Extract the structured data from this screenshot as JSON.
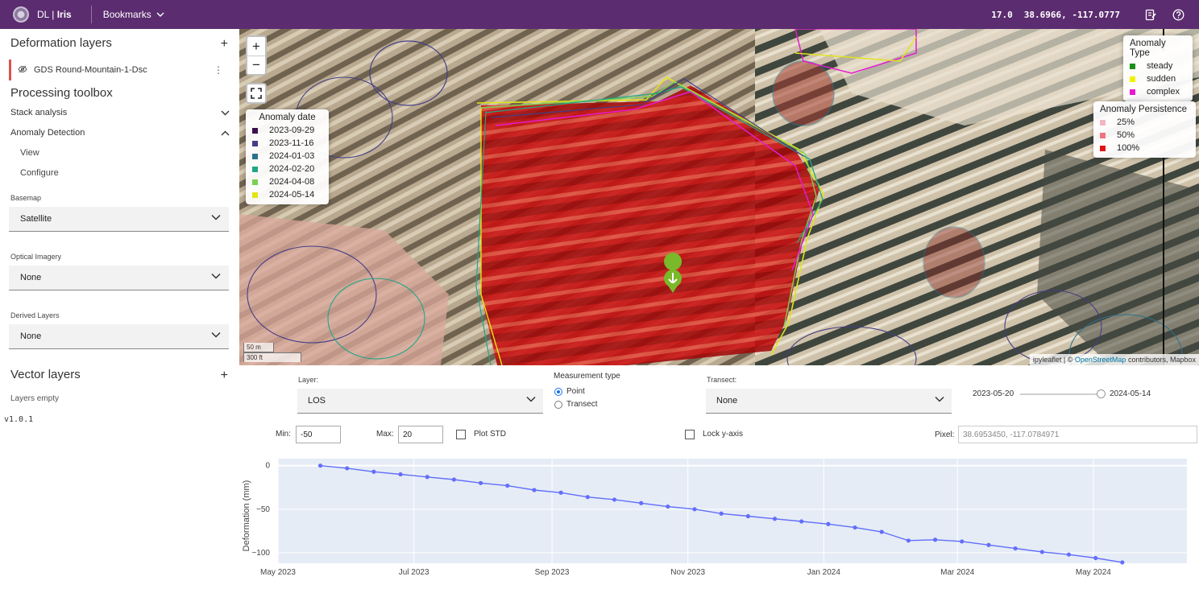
{
  "topbar": {
    "brand_prefix": "DL | ",
    "brand_name": "Iris",
    "bookmarks_label": "Bookmarks",
    "zoom_level": "17.0",
    "coordinates": "38.6966, -117.0777"
  },
  "sidebar": {
    "deformation_title": "Deformation layers",
    "layer_name": "GDS Round-Mountain-1-Dsc",
    "toolbox_title": "Processing toolbox",
    "stack_analysis": "Stack analysis",
    "anomaly_detection": "Anomaly Detection",
    "view_label": "View",
    "configure_label": "Configure",
    "basemap_label": "Basemap",
    "basemap_value": "Satellite",
    "optical_label": "Optical Imagery",
    "optical_value": "None",
    "derived_label": "Derived Layers",
    "derived_value": "None",
    "vector_title": "Vector layers",
    "vector_empty": "Layers empty",
    "version": "v1.0.1"
  },
  "map": {
    "zoom_in": "+",
    "zoom_out": "−",
    "anomaly_date_title": "Anomaly date",
    "anomaly_dates": [
      {
        "label": "2023-09-29",
        "color": "#3b0f4f"
      },
      {
        "label": "2023-11-16",
        "color": "#433e85"
      },
      {
        "label": "2024-01-03",
        "color": "#2c728e"
      },
      {
        "label": "2024-02-20",
        "color": "#21a585"
      },
      {
        "label": "2024-04-08",
        "color": "#7ad151"
      },
      {
        "label": "2024-05-14",
        "color": "#e2e418"
      }
    ],
    "anomaly_type_title": "Anomaly Type",
    "anomaly_types": [
      {
        "label": "steady",
        "color": "#1a8f1a"
      },
      {
        "label": "sudden",
        "color": "#f2f200"
      },
      {
        "label": "complex",
        "color": "#e61ad1"
      }
    ],
    "persistence_title": "Anomaly Persistence",
    "persistence": [
      {
        "label": "25%",
        "color": "#f4b6c2"
      },
      {
        "label": "50%",
        "color": "#ef7381"
      },
      {
        "label": "100%",
        "color": "#e01414"
      }
    ],
    "scale_m": "50 m",
    "scale_ft": "300 ft",
    "attribution_prefix": "ipyleaflet | © ",
    "attribution_link": "OpenStreetMap",
    "attribution_suffix": " contributors, Mapbox"
  },
  "controls": {
    "layer_label": "Layer:",
    "layer_value": "LOS",
    "measurement_label": "Measurement type",
    "measurement_options": [
      "Point",
      "Transect"
    ],
    "measurement_selected": "Point",
    "transect_label": "Transect:",
    "transect_value": "None",
    "date_start": "2023-05-20",
    "date_end": "2024-05-14",
    "min_label": "Min:",
    "min_value": "-50",
    "max_label": "Max:",
    "max_value": "20",
    "plot_std_label": "Plot STD",
    "lock_y_label": "Lock y-axis",
    "pixel_label": "Pixel:",
    "pixel_value": "38.6953450, -117.0784971"
  },
  "chart_data": {
    "type": "line",
    "title": "",
    "xlabel": "",
    "ylabel": "Deformation (mm)",
    "x_tick_labels": [
      "May 2023",
      "Jul 2023",
      "Sep 2023",
      "Nov 2023",
      "Jan 2024",
      "Mar 2024",
      "May 2024"
    ],
    "x_tick_dates": [
      "2023-05-01",
      "2023-07-01",
      "2023-09-01",
      "2023-11-01",
      "2024-01-01",
      "2024-03-01",
      "2024-05-01"
    ],
    "y_ticks": [
      0,
      -50,
      -100
    ],
    "xlim": [
      "2023-05-01",
      "2024-06-12"
    ],
    "ylim": [
      -112,
      8
    ],
    "grid": true,
    "line_color": "#636efa",
    "series": [
      {
        "name": "",
        "x": [
          "2023-05-20",
          "2023-06-01",
          "2023-06-13",
          "2023-06-25",
          "2023-07-07",
          "2023-07-19",
          "2023-07-31",
          "2023-08-12",
          "2023-08-24",
          "2023-09-05",
          "2023-09-17",
          "2023-09-29",
          "2023-10-11",
          "2023-10-23",
          "2023-11-04",
          "2023-11-16",
          "2023-11-28",
          "2023-12-10",
          "2023-12-22",
          "2024-01-03",
          "2024-01-15",
          "2024-01-27",
          "2024-02-08",
          "2024-02-20",
          "2024-03-03",
          "2024-03-15",
          "2024-03-27",
          "2024-04-08",
          "2024-04-20",
          "2024-05-02",
          "2024-05-14"
        ],
        "y": [
          0,
          -3,
          -7,
          -10,
          -13,
          -16,
          -20,
          -23,
          -28,
          -31,
          -36,
          -39,
          -43,
          -47,
          -50,
          -55,
          -58,
          -61,
          -64,
          -67,
          -71,
          -76,
          -86,
          -85,
          -87,
          -91,
          -95,
          -99,
          -102,
          -106,
          -111
        ]
      }
    ]
  }
}
